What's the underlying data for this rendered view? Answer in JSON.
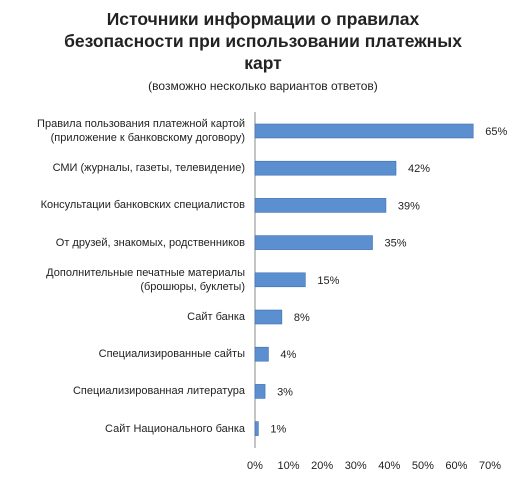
{
  "chart_data": {
    "type": "bar",
    "orientation": "horizontal",
    "title_lines": [
      "Источники информации о правилах",
      "безопасности при использовании платежных",
      "карт"
    ],
    "subtitle": "(возможно несколько вариантов ответов)",
    "categories": [
      [
        "Правила пользования платежной картой",
        "(приложение к банковскому договору)"
      ],
      [
        "СМИ (журналы, газеты, телевидение)"
      ],
      [
        "Консультации банковских специалистов"
      ],
      [
        "От друзей, знакомых, родственников"
      ],
      [
        "Дополнительные печатные материалы",
        "(брошюры, буклеты)"
      ],
      [
        "Сайт банка"
      ],
      [
        "Специализированные сайты"
      ],
      [
        "Специализированная литература"
      ],
      [
        "Сайт Национального банка"
      ]
    ],
    "values": [
      65,
      42,
      39,
      35,
      15,
      8,
      4,
      3,
      1
    ],
    "value_labels": [
      "65%",
      "42%",
      "39%",
      "35%",
      "15%",
      "8%",
      "4%",
      "3%",
      "1%"
    ],
    "xlim": [
      0,
      70
    ],
    "x_ticks": [
      0,
      10,
      20,
      30,
      40,
      50,
      60,
      70
    ],
    "x_tick_labels": [
      "0%",
      "10%",
      "20%",
      "30%",
      "40%",
      "50%",
      "60%",
      "70%"
    ],
    "grid": false,
    "legend": "none",
    "bar_color": "#5b8fd0",
    "bar_edge_color": "#3f6fae"
  }
}
